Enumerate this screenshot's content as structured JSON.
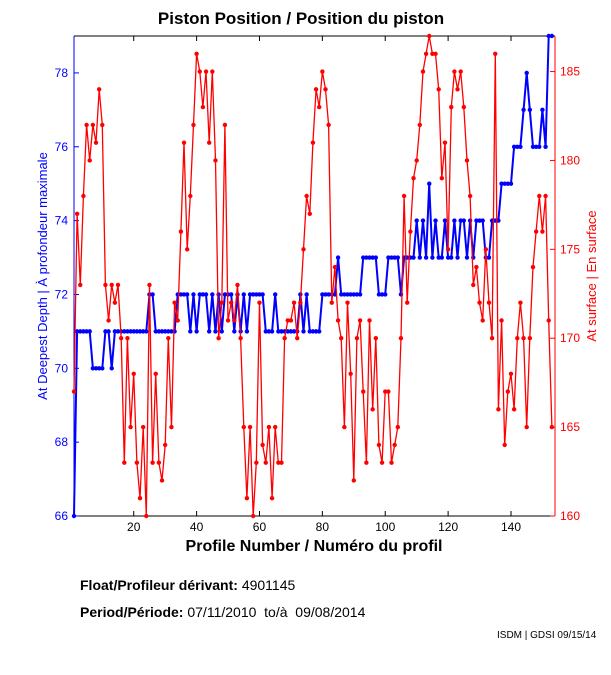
{
  "chart_data": {
    "type": "line",
    "title": "Piston Position / Position du piston",
    "xlabel": "Profile Number / Numéro du profil",
    "ylabel_left": "At Deepest Depth | À profondeur maximale",
    "ylabel_right": "At surface | En surface",
    "xlim": [
      1,
      154
    ],
    "ylim_left": [
      66,
      79
    ],
    "ylim_right": [
      160,
      187
    ],
    "x_ticks": [
      "20",
      "40",
      "60",
      "80",
      "100",
      "120",
      "140"
    ],
    "y_left_ticks": [
      "66",
      "68",
      "70",
      "72",
      "74",
      "76",
      "78"
    ],
    "y_right_ticks": [
      "160",
      "165",
      "170",
      "175",
      "180",
      "185"
    ],
    "grid": false,
    "series": [
      {
        "name": "At Deepest Depth",
        "axis": "left",
        "color": "#0000ff",
        "values": [
          66,
          71,
          71,
          71,
          71,
          71,
          70,
          70,
          70,
          70,
          71,
          71,
          70,
          71,
          71,
          71,
          71,
          71,
          71,
          71,
          71,
          71,
          71,
          71,
          72,
          72,
          71,
          71,
          71,
          71,
          71,
          71,
          71,
          72,
          72,
          72,
          72,
          71,
          72,
          71,
          72,
          72,
          72,
          71,
          72,
          71,
          72,
          71,
          72,
          72,
          72,
          71,
          72,
          71,
          72,
          71,
          72,
          72,
          72,
          72,
          72,
          71,
          71,
          71,
          72,
          71,
          71,
          71,
          71,
          71,
          71,
          71,
          72,
          71,
          72,
          71,
          71,
          71,
          71,
          72,
          72,
          72,
          72,
          72,
          73,
          72,
          72,
          72,
          72,
          72,
          72,
          72,
          73,
          73,
          73,
          73,
          73,
          72,
          72,
          72,
          73,
          73,
          73,
          73,
          72,
          73,
          73,
          73,
          73,
          74,
          73,
          74,
          73,
          75,
          73,
          74,
          73,
          73,
          74,
          73,
          73,
          74,
          73,
          74,
          74,
          73,
          74,
          73,
          74,
          74,
          74,
          73,
          73,
          74,
          74,
          74,
          75,
          75,
          75,
          75,
          76,
          76,
          76,
          77,
          78,
          77,
          76,
          76,
          76,
          77,
          76,
          79,
          79
        ]
      },
      {
        "name": "At surface",
        "axis": "right",
        "color": "#ff0000",
        "values": [
          167,
          177,
          173,
          178,
          182,
          180,
          182,
          181,
          184,
          182,
          173,
          171,
          173,
          172,
          173,
          170,
          163,
          170,
          165,
          168,
          163,
          161,
          165,
          160,
          173,
          163,
          168,
          163,
          162,
          164,
          170,
          165,
          172,
          171,
          176,
          181,
          175,
          178,
          182,
          186,
          185,
          183,
          185,
          181,
          185,
          180,
          170,
          172,
          182,
          171,
          172,
          171,
          173,
          170,
          165,
          161,
          165,
          160,
          163,
          172,
          164,
          163,
          165,
          161,
          165,
          163,
          163,
          170,
          171,
          171,
          172,
          170,
          172,
          175,
          178,
          177,
          181,
          184,
          183,
          185,
          184,
          182,
          172,
          174,
          171,
          170,
          165,
          172,
          168,
          162,
          170,
          171,
          167,
          163,
          171,
          166,
          170,
          164,
          163,
          167,
          167,
          163,
          164,
          165,
          170,
          178,
          172,
          176,
          179,
          180,
          182,
          185,
          186,
          187,
          186,
          186,
          184,
          179,
          181,
          175,
          183,
          185,
          184,
          185,
          183,
          180,
          178,
          173,
          174,
          172,
          171,
          175,
          172,
          170,
          186,
          166,
          171,
          164,
          167,
          168,
          166,
          170,
          172,
          170,
          165,
          170,
          174,
          176,
          178,
          176,
          178,
          171,
          165
        ]
      }
    ]
  },
  "info": {
    "float_label": "Float/Profileur dérivant:",
    "float_value": "4901145",
    "period_label": "Period/Période:",
    "period_value": "07/11/2010  to/à  09/08/2014",
    "credit": "ISDM | GDSI 09/15/14"
  }
}
